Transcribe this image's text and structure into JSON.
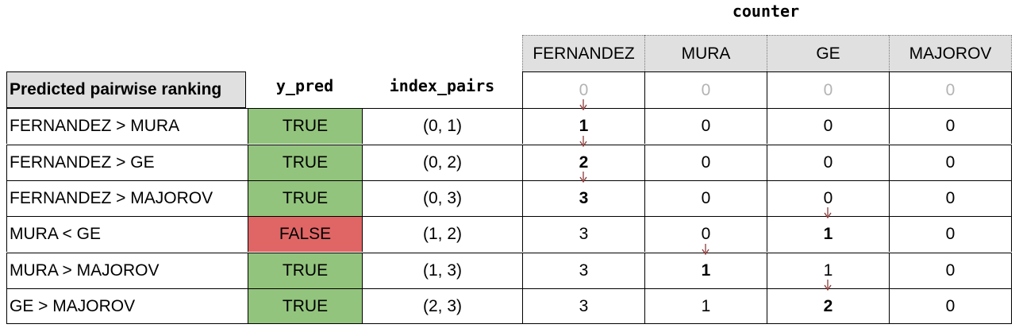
{
  "counter_title": "counter",
  "left_header": "Predicted pairwise ranking",
  "y_pred_header": "y_pred",
  "index_pairs_header": "index_pairs",
  "counter_columns": [
    "FERNANDEZ",
    "MURA",
    "GE",
    "MAJOROV"
  ],
  "initial_counter": [
    "0",
    "0",
    "0",
    "0"
  ],
  "colors": {
    "true_bg": "#93c47d",
    "false_bg": "#e06666",
    "header_bg": "#e0e0e0",
    "arrow": "#8b3a3a"
  },
  "rows": [
    {
      "ranking": "FERNANDEZ > MURA",
      "y_pred": "TRUE",
      "pair": "(0, 1)",
      "counter": [
        "1",
        "0",
        "0",
        "0"
      ],
      "bold_col": 0
    },
    {
      "ranking": "FERNANDEZ > GE",
      "y_pred": "TRUE",
      "pair": "(0, 2)",
      "counter": [
        "2",
        "0",
        "0",
        "0"
      ],
      "bold_col": 0
    },
    {
      "ranking": "FERNANDEZ > MAJOROV",
      "y_pred": "TRUE",
      "pair": "(0, 3)",
      "counter": [
        "3",
        "0",
        "0",
        "0"
      ],
      "bold_col": 0
    },
    {
      "ranking": "MURA < GE",
      "y_pred": "FALSE",
      "pair": "(1, 2)",
      "counter": [
        "3",
        "0",
        "1",
        "0"
      ],
      "bold_col": 2
    },
    {
      "ranking": "MURA > MAJOROV",
      "y_pred": "TRUE",
      "pair": "(1, 3)",
      "counter": [
        "3",
        "1",
        "1",
        "0"
      ],
      "bold_col": 1
    },
    {
      "ranking": "GE > MAJOROV",
      "y_pred": "TRUE",
      "pair": "(2, 3)",
      "counter": [
        "3",
        "1",
        "2",
        "0"
      ],
      "bold_col": 2
    }
  ]
}
